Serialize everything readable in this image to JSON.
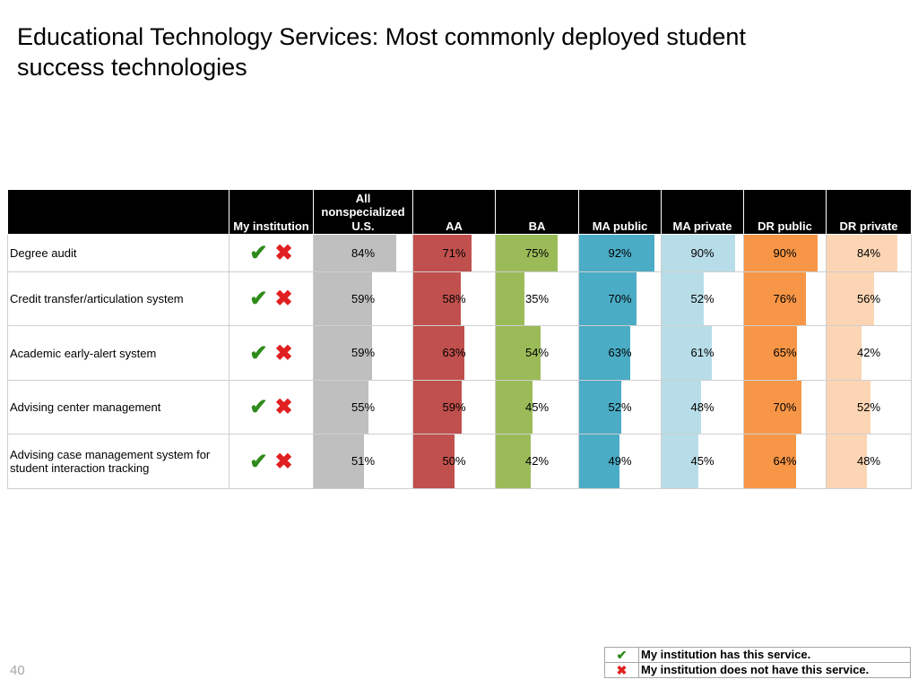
{
  "page": {
    "title": "Educational Technology Services: Most commonly deployed student success technologies",
    "slide_number": "40"
  },
  "table": {
    "headers": [
      "",
      "My institution",
      "All nonspecialized U.S.",
      "AA",
      "BA",
      "MA public",
      "MA private",
      "DR public",
      "DR private"
    ],
    "series_colors": [
      "#bfbfbf",
      "#c0504d",
      "#9bbb59",
      "#4bacc6",
      "#b7dde8",
      "#f79646",
      "#fcd5b4"
    ],
    "rows": [
      {
        "label": "Degree audit",
        "values": [
          "84%",
          "71%",
          "75%",
          "92%",
          "90%",
          "90%",
          "84%"
        ]
      },
      {
        "label": "Credit transfer/articulation system",
        "values": [
          "59%",
          "58%",
          "35%",
          "70%",
          "52%",
          "76%",
          "56%"
        ]
      },
      {
        "label": "Academic early-alert system",
        "values": [
          "59%",
          "63%",
          "54%",
          "63%",
          "61%",
          "65%",
          "42%"
        ]
      },
      {
        "label": "Advising center management",
        "values": [
          "55%",
          "59%",
          "45%",
          "52%",
          "48%",
          "70%",
          "52%"
        ]
      },
      {
        "label": "Advising case management system for student interaction tracking",
        "values": [
          "51%",
          "50%",
          "42%",
          "49%",
          "45%",
          "64%",
          "48%"
        ]
      }
    ]
  },
  "icons": {
    "check": "checkmark-icon",
    "cross": "cross-icon",
    "check_glyph": "✔",
    "cross_glyph": "✖"
  },
  "legend": {
    "has_service": "My institution has this service.",
    "not_have_service": "My institution does not have this service."
  }
}
